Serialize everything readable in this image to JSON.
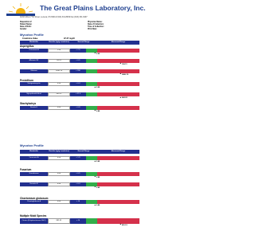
{
  "header": {
    "title": "The Great Plains Laboratory, Inc.",
    "address": "11813 West 77th Street, Lenexa, KS 66214   (913) 341-8949   Fax (913) 341-6207"
  },
  "patient_fields": [
    "Requisition #:",
    "Physician Name:",
    "Patient Name:",
    "Date of Collection:",
    "Date of Birth:",
    "Time of Collection:",
    "Gender:",
    "Print Date:"
  ],
  "page1": {
    "title": "Mycotox Profile",
    "creatinine_label": "Creatinine Value",
    "creatinine_value": "97.37 mg/dl",
    "columns": [
      "Metabolite",
      "Results (ng/g creatinine)",
      "Normal Range",
      "Abnormal Range"
    ],
    "groups": [
      {
        "name": "Aspergillus",
        "rows": [
          {
            "metabolite": "Ochratoxin A",
            "result": "2.90",
            "normal": "< 7.5"
          },
          {
            "metabolite": "Aflatoxin M1",
            "result": "100.11",
            "normal": "< 0.5"
          },
          {
            "metabolite": "Gliotoxin",
            "result": "3456.78",
            "normal": "< 200"
          }
        ]
      },
      {
        "name": "Penicillium",
        "rows": [
          {
            "metabolite": "Sterigmatocystin",
            "result": "0.90",
            "normal": "< 0.4"
          },
          {
            "metabolite": "Mycophenolic Acid",
            "result": "943.22",
            "normal": "< 37.4"
          }
        ]
      },
      {
        "name": "Stachybotrys",
        "rows": [
          {
            "metabolite": "Roridin E",
            "result": "0.80",
            "normal": "< 0.8"
          }
        ]
      }
    ]
  },
  "page2": {
    "title": "Mycotox Profile",
    "columns": [
      "Metabolite",
      "Results (ng/g creatinine)",
      "Normal Range",
      "Abnormal Range"
    ],
    "leading_rows": [
      {
        "metabolite": "Verrucarin A",
        "result": "0.40",
        "normal": "< 1.9"
      }
    ],
    "groups": [
      {
        "name": "Fusarium",
        "rows": [
          {
            "metabolite": "Zearalenone",
            "result": "0.80",
            "normal": "< 0.5"
          },
          {
            "metabolite": "Enniatin B",
            "result": "0.40",
            "normal": "< 0.4"
          }
        ]
      },
      {
        "name": "Chaetomium globosum",
        "rows": [
          {
            "metabolite": "Chaetoglobosin A",
            "result": "0.80",
            "normal": "< 10"
          }
        ]
      },
      {
        "name": "Multiple Mold Species",
        "rows": [
          {
            "metabolite": "Citrinin (Dihydrocitrinone DHC)",
            "result": "891.51",
            "normal": "< 25"
          }
        ]
      }
    ]
  }
}
